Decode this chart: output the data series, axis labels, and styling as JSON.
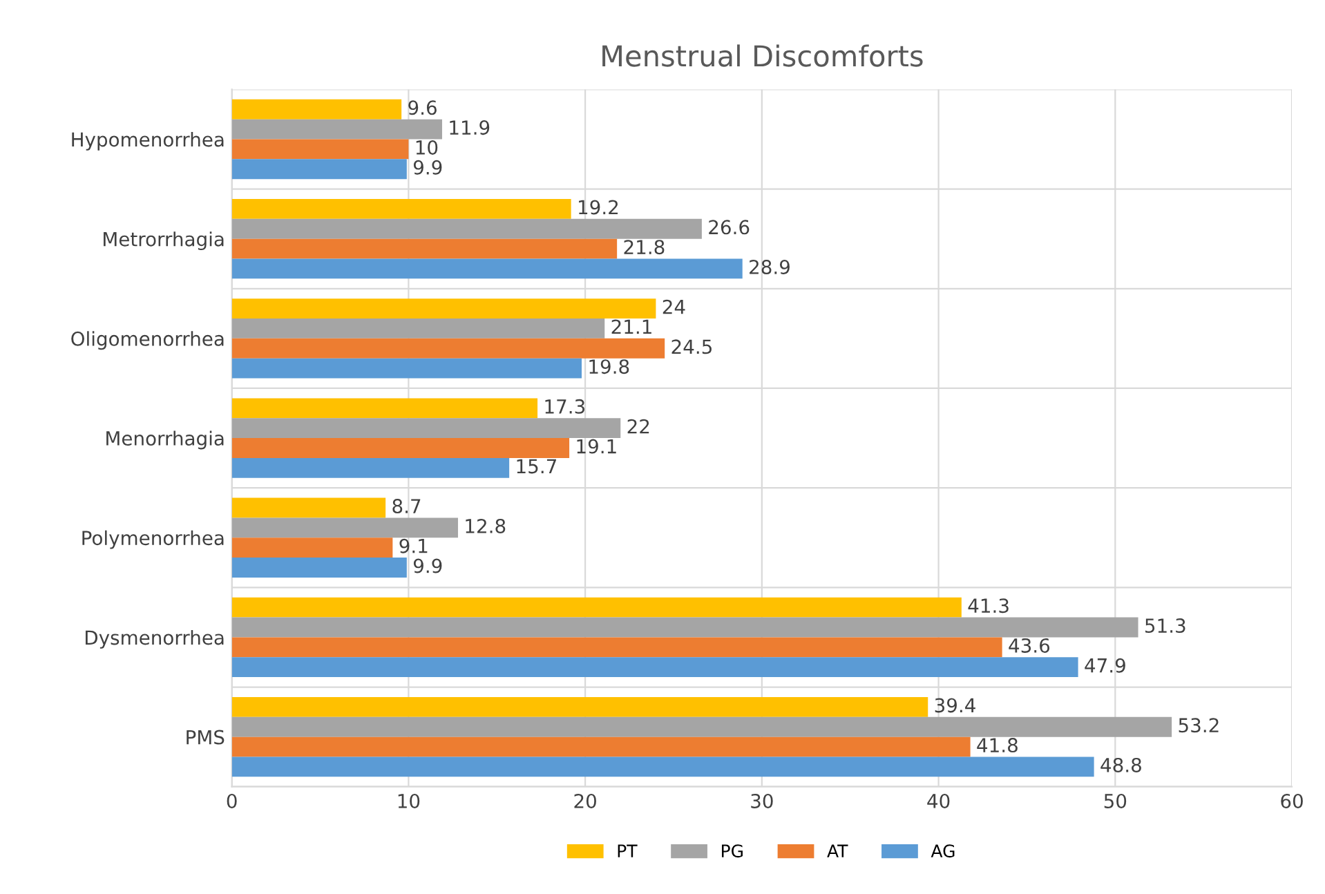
{
  "chart_data": {
    "type": "bar",
    "orientation": "horizontal",
    "title": "Menstrual Discomforts",
    "categories": [
      "Hypomenorrhea",
      "Metrorrhagia",
      "Oligomenorrhea",
      "Menorrhagia",
      "Polymenorrhea",
      "Dysmenorrhea",
      "PMS"
    ],
    "series": [
      {
        "name": "PT",
        "color": "#ffc000",
        "values": [
          9.6,
          19.2,
          24,
          17.3,
          8.7,
          41.3,
          39.4
        ]
      },
      {
        "name": "PG",
        "color": "#a5a5a5",
        "values": [
          11.9,
          26.6,
          21.1,
          22,
          12.8,
          51.3,
          53.2
        ]
      },
      {
        "name": "AT",
        "color": "#ed7d31",
        "values": [
          10,
          21.8,
          24.5,
          19.1,
          9.1,
          43.6,
          41.8
        ]
      },
      {
        "name": "AG",
        "color": "#5b9bd5",
        "values": [
          9.9,
          28.9,
          19.8,
          15.7,
          9.9,
          47.9,
          48.8
        ]
      }
    ],
    "xlim": [
      0,
      60
    ],
    "xticks": [
      0,
      10,
      20,
      30,
      40,
      50,
      60
    ],
    "data_labels": true,
    "grid": "x",
    "legend": "bottom"
  }
}
